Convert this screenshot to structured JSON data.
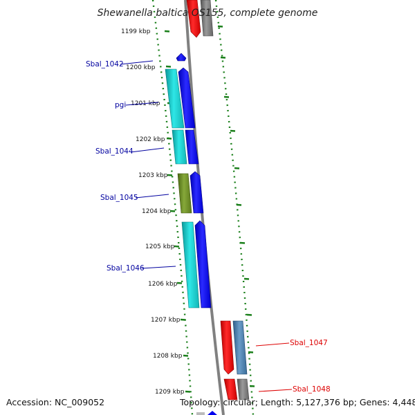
{
  "title": "Shewanella baltica OS155, complete genome",
  "footer": {
    "accession": "Accession: NC_009052",
    "summary": "Topology: circular; Length: 5,127,376 bp; Genes: 4,448"
  },
  "colors": {
    "tick": "#1a7f1a",
    "backbone": "#808080",
    "cds_forward": "#0000ee",
    "gene_cyan": "#18c8c8",
    "gene_olive": "#6b8e23",
    "cds_reverse": "#ee0000",
    "gene_steelblue": "#4682b4",
    "gene_gray": "#707070",
    "label_blue": "#00009f",
    "label_red": "#dd0000"
  },
  "ticks": [
    "1199 kbp",
    "1200 kbp",
    "1201 kbp",
    "1202 kbp",
    "1203 kbp",
    "1204 kbp",
    "1205 kbp",
    "1206 kbp",
    "1207 kbp",
    "1208 kbp",
    "1209 kbp"
  ],
  "labels": {
    "sbal_1042": "Sbal_1042",
    "pgi": "pgi",
    "sbal_1044": "Sbal_1044",
    "sbal_1045": "Sbal_1045",
    "sbal_1046": "Sbal_1046",
    "sbal_1047": "Sbal_1047",
    "sbal_1048": "Sbal_1048"
  }
}
